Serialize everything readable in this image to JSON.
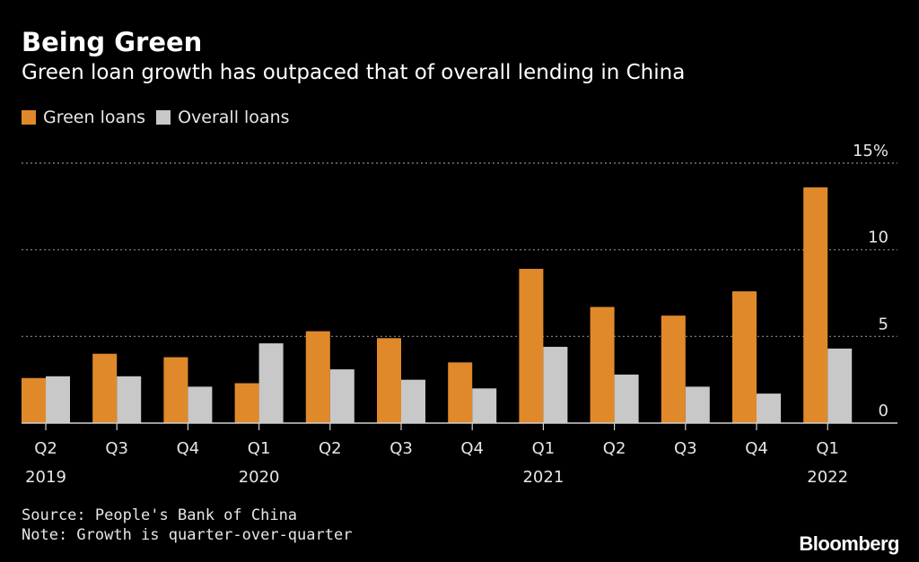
{
  "title": "Being Green",
  "subtitle": "Green loan growth has outpaced that of overall lending in China",
  "legend": {
    "green_label": "Green loans",
    "overall_label": "Overall loans"
  },
  "colors": {
    "green_loans": "#E0892A",
    "overall_loans": "#C8C8C8",
    "background": "#000000",
    "gridline": "#8a8a8a"
  },
  "footer": {
    "source": "Source: People's Bank of China",
    "note": "Note: Growth is quarter-over-quarter",
    "brand": "Bloomberg"
  },
  "chart_data": {
    "type": "bar",
    "title": "Being Green",
    "subtitle": "Green loan growth has outpaced that of overall lending in China",
    "xlabel": "",
    "ylabel": "",
    "ylim": [
      0,
      15
    ],
    "yticks": [
      {
        "value": 0,
        "label": "0"
      },
      {
        "value": 5,
        "label": "5"
      },
      {
        "value": 10,
        "label": "10"
      },
      {
        "value": 15,
        "label": "15%"
      }
    ],
    "grid": true,
    "legend_position": "top-left",
    "categories": [
      {
        "quarter": "Q2",
        "year": "2019"
      },
      {
        "quarter": "Q3",
        "year": ""
      },
      {
        "quarter": "Q4",
        "year": ""
      },
      {
        "quarter": "Q1",
        "year": "2020"
      },
      {
        "quarter": "Q2",
        "year": ""
      },
      {
        "quarter": "Q3",
        "year": ""
      },
      {
        "quarter": "Q4",
        "year": ""
      },
      {
        "quarter": "Q1",
        "year": "2021"
      },
      {
        "quarter": "Q2",
        "year": ""
      },
      {
        "quarter": "Q3",
        "year": ""
      },
      {
        "quarter": "Q4",
        "year": ""
      },
      {
        "quarter": "Q1",
        "year": "2022"
      }
    ],
    "series": [
      {
        "name": "Green loans",
        "values": [
          2.6,
          4.0,
          3.8,
          2.3,
          5.3,
          4.9,
          3.5,
          8.9,
          6.7,
          6.2,
          7.6,
          13.6
        ]
      },
      {
        "name": "Overall loans",
        "values": [
          2.7,
          2.7,
          2.1,
          4.6,
          3.1,
          2.5,
          2.0,
          4.4,
          2.8,
          2.1,
          1.7,
          4.3
        ]
      }
    ]
  }
}
